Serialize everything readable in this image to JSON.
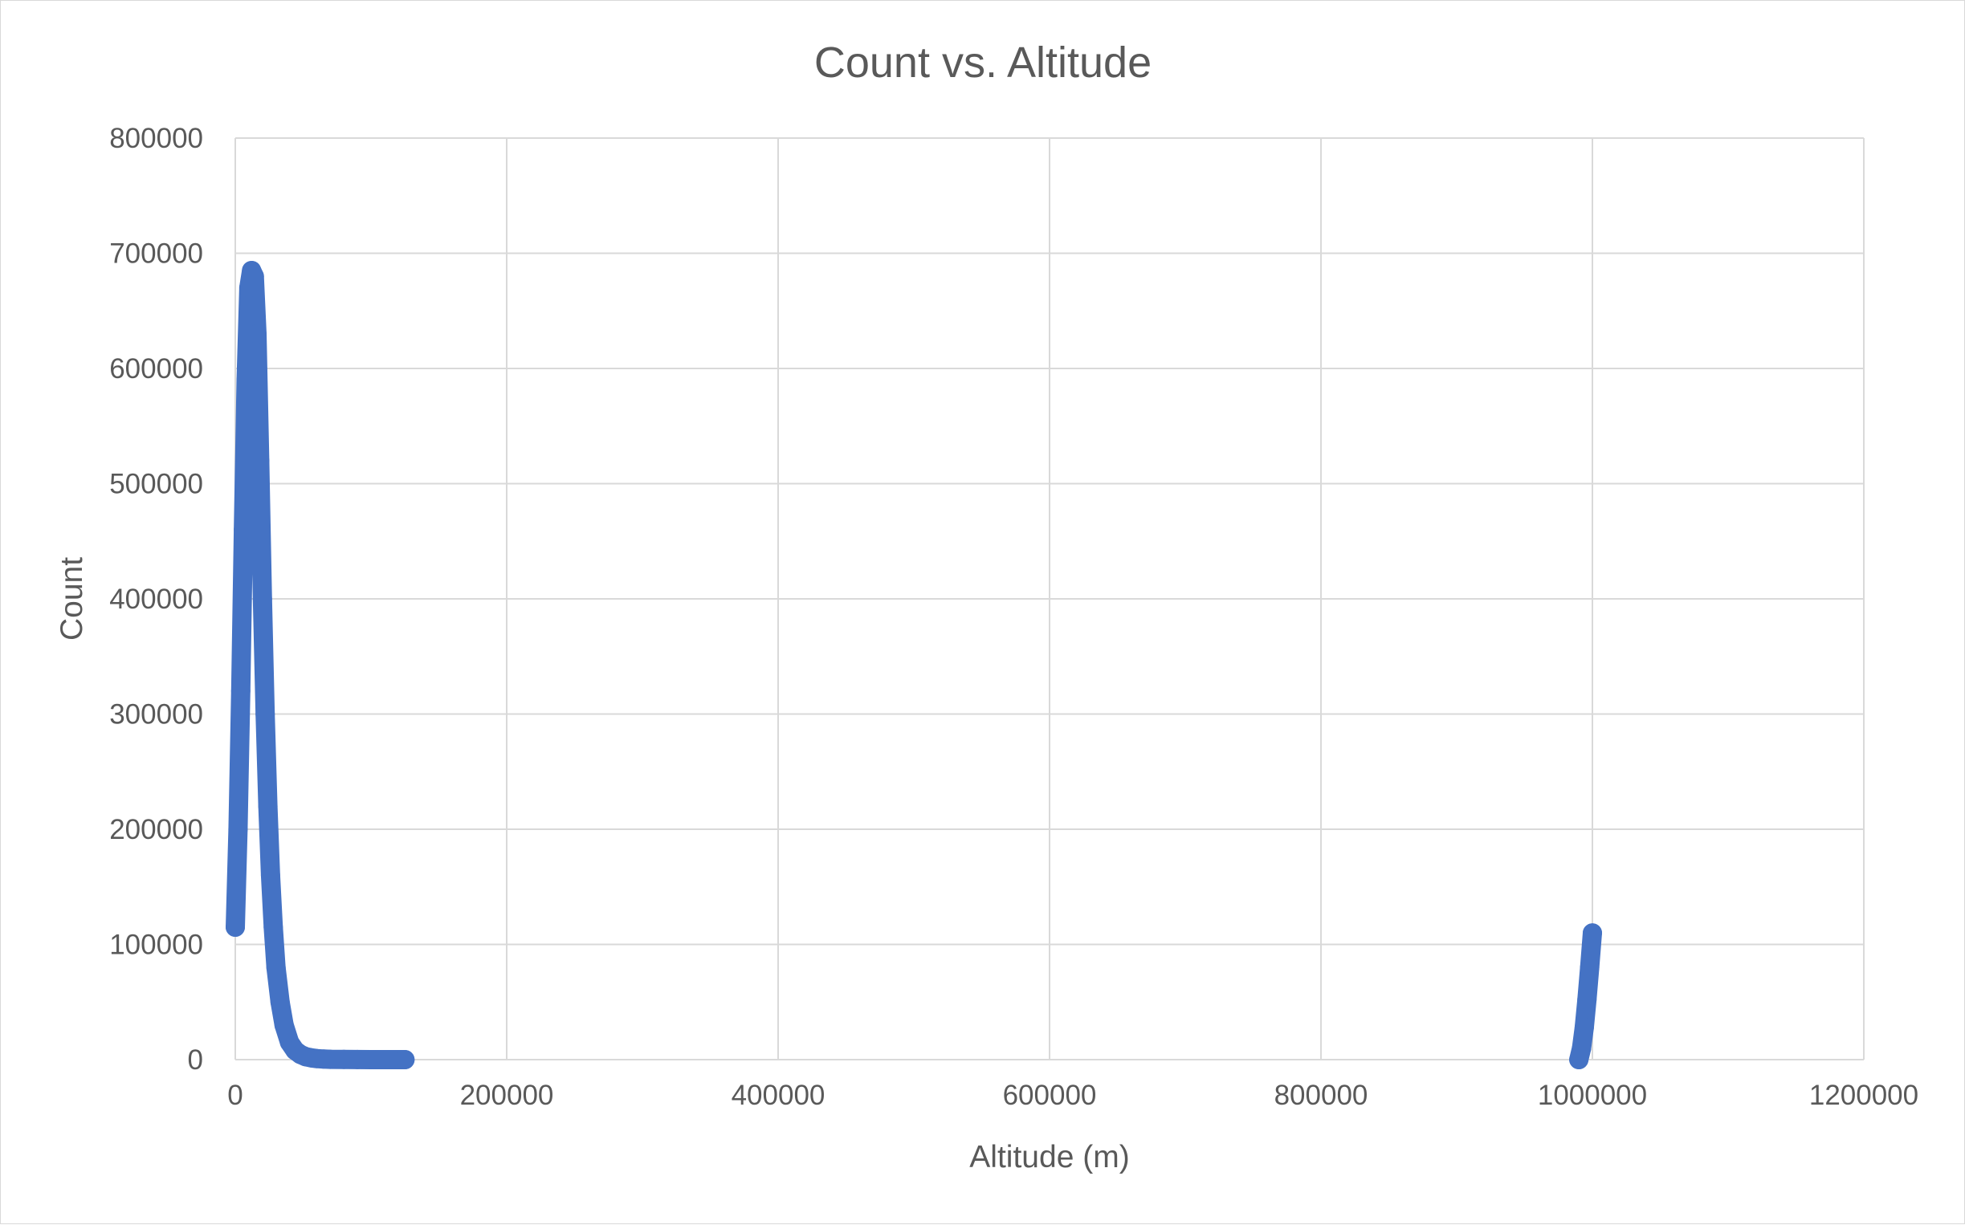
{
  "chart_data": {
    "type": "scatter",
    "title": "Count vs. Altitude",
    "xlabel": "Altitude (m)",
    "ylabel": "Count",
    "xlim": [
      0,
      1200000
    ],
    "ylim": [
      0,
      800000
    ],
    "x_ticks": [
      "0",
      "200000",
      "400000",
      "600000",
      "800000",
      "1000000",
      "1200000"
    ],
    "y_ticks": [
      "0",
      "100000",
      "200000",
      "300000",
      "400000",
      "500000",
      "600000",
      "700000",
      "800000"
    ],
    "grid": true,
    "legend": "none",
    "series_color": "#4472C4",
    "series": [
      {
        "x": [
          0,
          2000,
          4000,
          6000,
          8000,
          10000,
          12000,
          14000,
          16000,
          18000,
          20000,
          22000,
          24000,
          26000,
          28000,
          30000,
          33000,
          36000,
          40000,
          44000,
          48000,
          52000,
          56000,
          60000,
          65000,
          70000,
          80000,
          90000,
          100000,
          110000,
          120000,
          125000
        ],
        "y": [
          115000,
          200000,
          320000,
          460000,
          590000,
          670000,
          685000,
          680000,
          630000,
          520000,
          400000,
          300000,
          220000,
          160000,
          115000,
          80000,
          50000,
          30000,
          15000,
          8000,
          4500,
          2500,
          1500,
          900,
          500,
          300,
          120,
          50,
          20,
          8,
          3,
          1
        ]
      },
      {
        "x": [
          990000,
          992000,
          994000,
          996000,
          998000,
          1000000
        ],
        "y": [
          0,
          10000,
          28000,
          52000,
          80000,
          110000
        ]
      }
    ]
  }
}
